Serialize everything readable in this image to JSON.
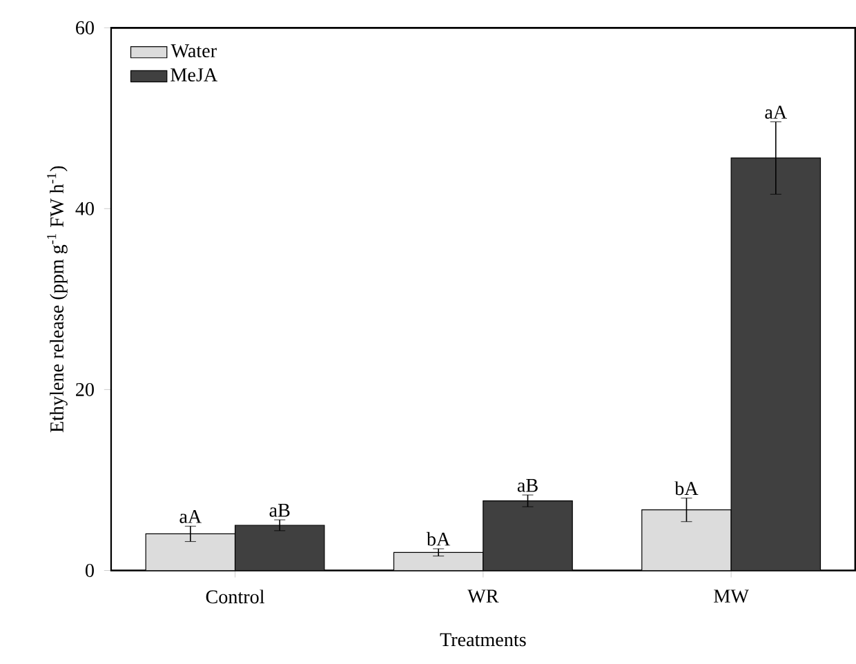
{
  "chart_data": {
    "type": "bar",
    "xlabel": "Treatments",
    "ylabel": "Ethylene release (ppm g$^{-1}$ FW h$^{-1}$)",
    "categories": [
      "Control",
      "WR",
      "MW"
    ],
    "series": [
      {
        "name": "Water",
        "color": "#dcdcdc",
        "values": [
          4.05,
          2.0,
          6.7
        ],
        "errors": [
          0.85,
          0.4,
          1.3
        ],
        "value_labels": [
          "aA",
          "bA",
          "bA"
        ]
      },
      {
        "name": "MeJA",
        "color": "#404040",
        "values": [
          5.0,
          7.7,
          45.6
        ],
        "errors": [
          0.6,
          0.65,
          4.0
        ],
        "value_labels": [
          "aB",
          "aB",
          "aA"
        ]
      }
    ],
    "ylim": [
      0,
      60
    ],
    "yticks": [
      0,
      20,
      40,
      60
    ],
    "legend": "top left",
    "grid": false
  }
}
